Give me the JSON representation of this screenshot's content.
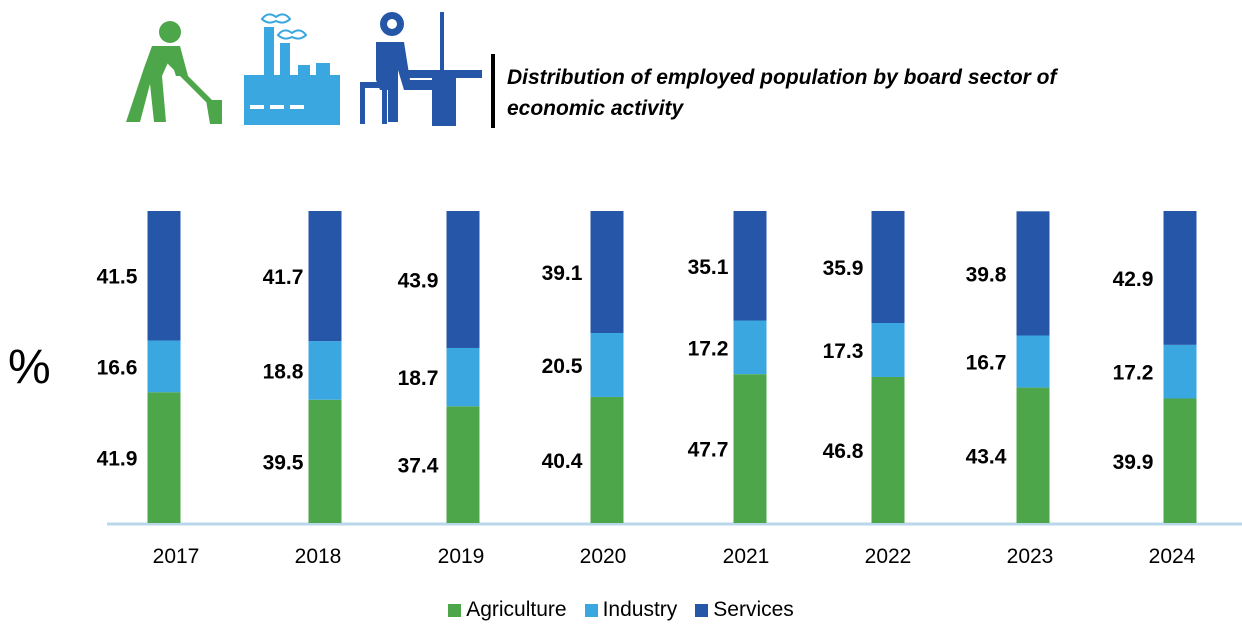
{
  "header": {
    "title": "Distribution of employed population by board sector of economic activity",
    "icons": [
      "farmer-hoeing-icon",
      "factory-icon",
      "office-worker-icon"
    ]
  },
  "unit_label": "%",
  "colors": {
    "agriculture": "#4ea64a",
    "industry": "#3ba7e0",
    "services": "#2656a8",
    "axis": "#b8d7ea"
  },
  "chart_data": {
    "type": "bar",
    "stacked": true,
    "title": "Distribution of employed population by board sector of economic activity",
    "ylabel": "%",
    "xlabel": "",
    "categories": [
      "2017",
      "2018",
      "2019",
      "2020",
      "2021",
      "2022",
      "2023",
      "2024"
    ],
    "series": [
      {
        "name": "Agriculture",
        "values": [
          41.9,
          39.5,
          37.4,
          40.4,
          47.7,
          46.8,
          43.4,
          39.9
        ]
      },
      {
        "name": "Industry",
        "values": [
          16.6,
          18.8,
          18.7,
          20.5,
          17.2,
          17.3,
          16.7,
          17.2
        ]
      },
      {
        "name": "Services",
        "values": [
          41.5,
          41.7,
          43.9,
          39.1,
          35.1,
          35.9,
          39.8,
          42.9
        ]
      }
    ],
    "ylim": [
      0,
      100
    ],
    "grid": false,
    "legend": "bottom"
  }
}
